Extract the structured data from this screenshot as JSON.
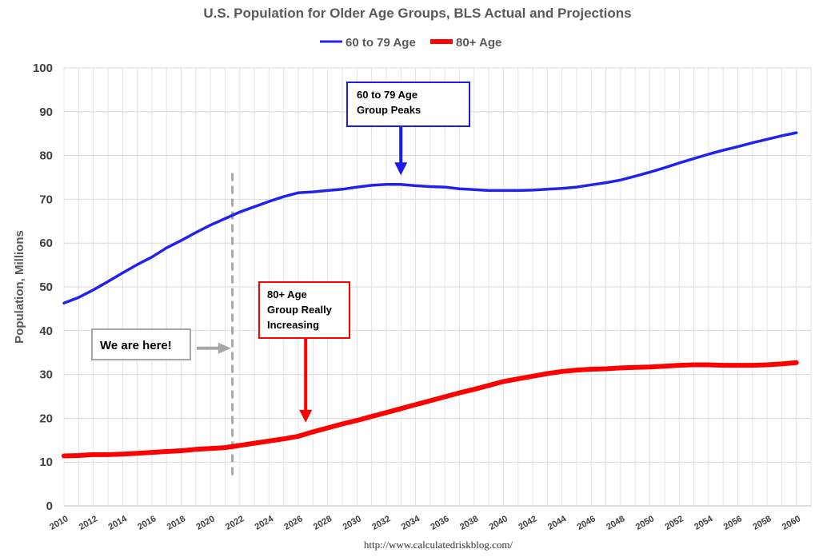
{
  "chart_data": {
    "type": "line",
    "title": "U.S. Population for Older Age Groups, BLS Actual and Projections",
    "ylabel": "Population, Millions",
    "xlabel": "",
    "ylim": [
      0,
      100
    ],
    "xlim": [
      2010,
      2061
    ],
    "yticks": [
      0,
      10,
      20,
      30,
      40,
      50,
      60,
      70,
      80,
      90,
      100
    ],
    "xticks": [
      2010,
      2012,
      2014,
      2016,
      2018,
      2020,
      2022,
      2024,
      2026,
      2028,
      2030,
      2032,
      2034,
      2036,
      2038,
      2040,
      2042,
      2044,
      2046,
      2048,
      2050,
      2052,
      2054,
      2056,
      2058,
      2060
    ],
    "grid": true,
    "legend_position": "top-center",
    "x": [
      2010,
      2011,
      2012,
      2013,
      2014,
      2015,
      2016,
      2017,
      2018,
      2019,
      2020,
      2021,
      2022,
      2023,
      2024,
      2025,
      2026,
      2027,
      2028,
      2029,
      2030,
      2031,
      2032,
      2033,
      2034,
      2035,
      2036,
      2037,
      2038,
      2039,
      2040,
      2041,
      2042,
      2043,
      2044,
      2045,
      2046,
      2047,
      2048,
      2049,
      2050,
      2051,
      2052,
      2053,
      2054,
      2055,
      2056,
      2057,
      2058,
      2059,
      2060
    ],
    "series": [
      {
        "name": "60 to 79 Age",
        "color": "#2222ee",
        "values": [
          46.3,
          47.6,
          49.3,
          51.2,
          53.2,
          55.1,
          56.8,
          58.9,
          60.6,
          62.4,
          64.1,
          65.6,
          67.1,
          68.3,
          69.5,
          70.6,
          71.5,
          71.7,
          72.0,
          72.3,
          72.8,
          73.2,
          73.4,
          73.4,
          73.1,
          72.9,
          72.8,
          72.4,
          72.2,
          72.0,
          72.0,
          72.0,
          72.1,
          72.3,
          72.5,
          72.8,
          73.3,
          73.8,
          74.4,
          75.3,
          76.2,
          77.2,
          78.3,
          79.3,
          80.3,
          81.2,
          82.0,
          82.9,
          83.7,
          84.5,
          85.2
        ]
      },
      {
        "name": "80+ Age",
        "color": "#ff0000",
        "values": [
          11.4,
          11.5,
          11.7,
          11.7,
          11.8,
          12.0,
          12.2,
          12.4,
          12.6,
          12.9,
          13.1,
          13.3,
          13.8,
          14.3,
          14.8,
          15.3,
          15.9,
          16.9,
          17.8,
          18.7,
          19.5,
          20.4,
          21.3,
          22.2,
          23.1,
          24.0,
          24.9,
          25.8,
          26.6,
          27.5,
          28.4,
          29.0,
          29.6,
          30.2,
          30.7,
          31.0,
          31.2,
          31.3,
          31.5,
          31.6,
          31.7,
          31.9,
          32.1,
          32.2,
          32.2,
          32.1,
          32.1,
          32.1,
          32.2,
          32.4,
          32.7
        ]
      }
    ],
    "annotations": [
      {
        "id": "peak",
        "lines": [
          "60 to 79 Age",
          "Group Peaks"
        ],
        "color": "#1a1aee",
        "arrow_to": [
          2033,
          75.5
        ]
      },
      {
        "id": "increasing",
        "lines": [
          "80+ Age",
          "Group Really",
          "Increasing"
        ],
        "color": "#ff0000",
        "arrow_to": [
          2026.5,
          19
        ]
      },
      {
        "id": "here",
        "lines": [
          "We are here!"
        ],
        "color": "#a6a6a6",
        "arrow_to": [
          2021.4,
          36
        ]
      }
    ],
    "vline": {
      "x": 2021.5,
      "from": 7,
      "to": 76,
      "color": "#a6a6a6",
      "style": "dashed"
    },
    "source": "http://www.calculatedriskblog.com/"
  }
}
